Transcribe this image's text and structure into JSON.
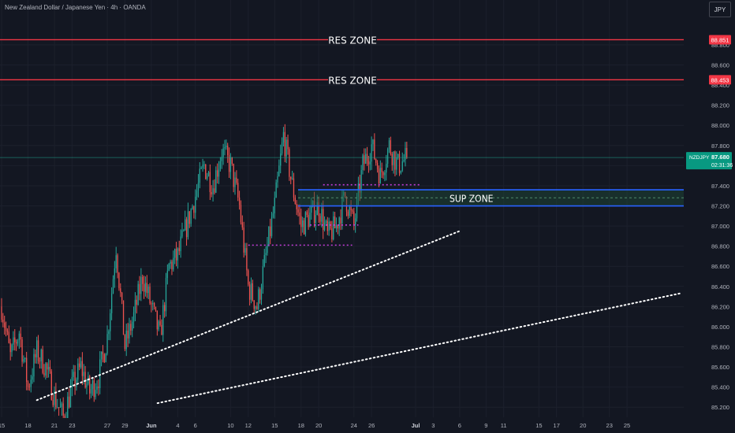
{
  "header": {
    "instrument_title": "New Zealand Dollar / Japanese Yen · 4h · OANDA",
    "currency_button": "JPY"
  },
  "colors": {
    "background": "#131722",
    "grid": "#1c202c",
    "up_candle": "#26a69a",
    "down_candle": "#ef5350",
    "resistance_line": "#f23645",
    "support_line": "#2962ff",
    "support_fill": "#1f4d3a",
    "pivot_dotted": "#c13ad6",
    "trendline": "#ffffff",
    "current_price_badge": "#089981",
    "current_price_line": "#22ab94"
  },
  "chart_data": {
    "type": "candlestick",
    "symbol": "NZDJPY",
    "timeframe": "4h",
    "ylim": [
      85.1,
      89.05
    ],
    "y_ticks": [
      "85.200",
      "85.400",
      "85.600",
      "85.800",
      "86.000",
      "86.200",
      "86.400",
      "86.600",
      "86.800",
      "87.000",
      "87.200",
      "87.400",
      "87.600",
      "87.800",
      "88.000",
      "88.200",
      "88.400",
      "88.600",
      "88.800"
    ],
    "x_ticks": [
      {
        "label": "15",
        "day": 0
      },
      {
        "label": "18",
        "day": 3
      },
      {
        "label": "21",
        "day": 6
      },
      {
        "label": "23",
        "day": 8
      },
      {
        "label": "27",
        "day": 12
      },
      {
        "label": "29",
        "day": 14
      },
      {
        "label": "Jun",
        "day": 17
      },
      {
        "label": "4",
        "day": 20
      },
      {
        "label": "6",
        "day": 22
      },
      {
        "label": "10",
        "day": 26
      },
      {
        "label": "12",
        "day": 28
      },
      {
        "label": "15",
        "day": 31
      },
      {
        "label": "18",
        "day": 34
      },
      {
        "label": "20",
        "day": 36
      },
      {
        "label": "24",
        "day": 40
      },
      {
        "label": "26",
        "day": 42
      },
      {
        "label": "Jul",
        "day": 47
      },
      {
        "label": "3",
        "day": 49
      },
      {
        "label": "6",
        "day": 52
      },
      {
        "label": "9",
        "day": 55
      },
      {
        "label": "11",
        "day": 57
      },
      {
        "label": "15",
        "day": 61
      },
      {
        "label": "17",
        "day": 63
      },
      {
        "label": "20",
        "day": 66
      },
      {
        "label": "23",
        "day": 69
      },
      {
        "label": "25",
        "day": 71
      }
    ],
    "price_path": [
      [
        0,
        86.2
      ],
      [
        1,
        85.7
      ],
      [
        2,
        85.95
      ],
      [
        3,
        85.4
      ],
      [
        4,
        85.75
      ],
      [
        5,
        85.6
      ],
      [
        6,
        85.3
      ],
      [
        7,
        85.1
      ],
      [
        8,
        85.4
      ],
      [
        9,
        85.6
      ],
      [
        10,
        85.35
      ],
      [
        11,
        85.5
      ],
      [
        12,
        85.9
      ],
      [
        13,
        86.8
      ],
      [
        14,
        85.8
      ],
      [
        15,
        86.1
      ],
      [
        16,
        86.5
      ],
      [
        17,
        86.2
      ],
      [
        18,
        85.9
      ],
      [
        19,
        86.6
      ],
      [
        20,
        86.7
      ],
      [
        21,
        87.0
      ],
      [
        22,
        87.3
      ],
      [
        23,
        87.6
      ],
      [
        24,
        87.4
      ],
      [
        25,
        87.75
      ],
      [
        26,
        87.6
      ],
      [
        27,
        87.2
      ],
      [
        28,
        86.4
      ],
      [
        29,
        86.2
      ],
      [
        30,
        86.7
      ],
      [
        31,
        87.2
      ],
      [
        32,
        87.9
      ],
      [
        33,
        87.4
      ],
      [
        34,
        87.0
      ],
      [
        35,
        87.1
      ],
      [
        36,
        87.2
      ],
      [
        37,
        86.9
      ],
      [
        38,
        87.0
      ],
      [
        39,
        87.3
      ],
      [
        40,
        87.0
      ],
      [
        41,
        87.6
      ],
      [
        42,
        87.8
      ],
      [
        43,
        87.5
      ],
      [
        44,
        87.8
      ],
      [
        45,
        87.6
      ],
      [
        46,
        87.68
      ]
    ],
    "candles_per_day": 6,
    "current_price": {
      "symbol": "NZDJPY",
      "price": "87.680",
      "countdown": "02:31:36",
      "value": 87.68
    },
    "resistance_zones": [
      {
        "label": "RES ZONE",
        "price": 88.851,
        "price_text": "88.851"
      },
      {
        "label": "RES ZONE",
        "price": 88.453,
        "price_text": "88.453"
      }
    ],
    "support_zone": {
      "label": "SUP ZONE",
      "top": 87.36,
      "bottom": 87.2
    },
    "pivot_levels": [
      {
        "price": 87.41,
        "from_day": 36.5,
        "to_day": 47.5
      },
      {
        "price": 87.01,
        "from_day": 35.0,
        "to_day": 40.5
      },
      {
        "price": 86.81,
        "from_day": 28.0,
        "to_day": 39.8
      }
    ],
    "trendlines": [
      {
        "from": {
          "day": 4.0,
          "price": 85.27
        },
        "to": {
          "day": 52.0,
          "price": 86.95
        }
      },
      {
        "from": {
          "day": 17.7,
          "price": 85.24
        },
        "to": {
          "day": 77.0,
          "price": 86.33
        }
      }
    ],
    "grid": true
  }
}
